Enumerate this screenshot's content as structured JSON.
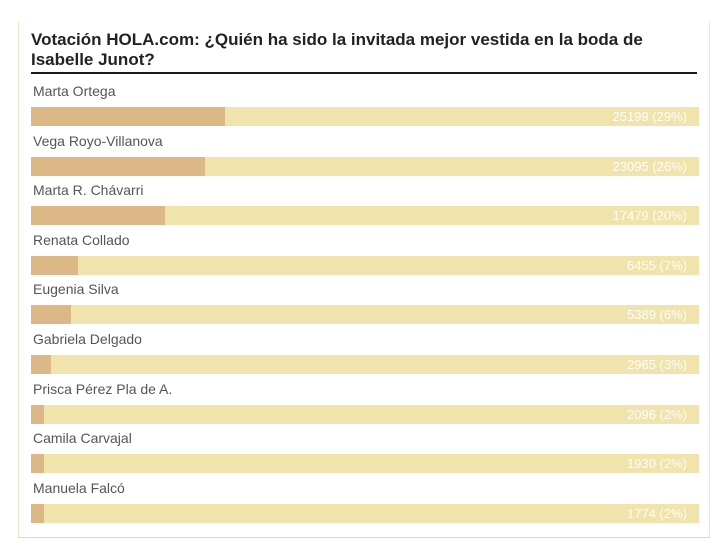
{
  "poll": {
    "title": "Votación HOLA.com: ¿Quién ha sido la invitada mejor vestida en la boda de Isabelle Junot?",
    "colors": {
      "track": "#f0e3ab",
      "fill": "#dbb886",
      "value_text": "#ffffff",
      "title_rule": "#1a1a1a"
    },
    "options": [
      {
        "label": "Marta Ortega",
        "votes": 25199,
        "percent": 29,
        "value_text": "25199 (29%)"
      },
      {
        "label": "Vega Royo-Villanova",
        "votes": 23095,
        "percent": 26,
        "value_text": "23095 (26%)"
      },
      {
        "label": "Marta R. Chávarri",
        "votes": 17479,
        "percent": 20,
        "value_text": "17479 (20%)"
      },
      {
        "label": "Renata Collado",
        "votes": 6455,
        "percent": 7,
        "value_text": "6455 (7%)"
      },
      {
        "label": "Eugenia Silva",
        "votes": 5389,
        "percent": 6,
        "value_text": "5389 (6%)"
      },
      {
        "label": "Gabriela Delgado",
        "votes": 2965,
        "percent": 3,
        "value_text": "2965 (3%)"
      },
      {
        "label": "Prisca Pérez Pla de A.",
        "votes": 2096,
        "percent": 2,
        "value_text": "2096 (2%)"
      },
      {
        "label": "Camila Carvajal",
        "votes": 1930,
        "percent": 2,
        "value_text": "1930 (2%)"
      },
      {
        "label": "Manuela Falcó",
        "votes": 1774,
        "percent": 2,
        "value_text": "1774 (2%)"
      }
    ]
  }
}
